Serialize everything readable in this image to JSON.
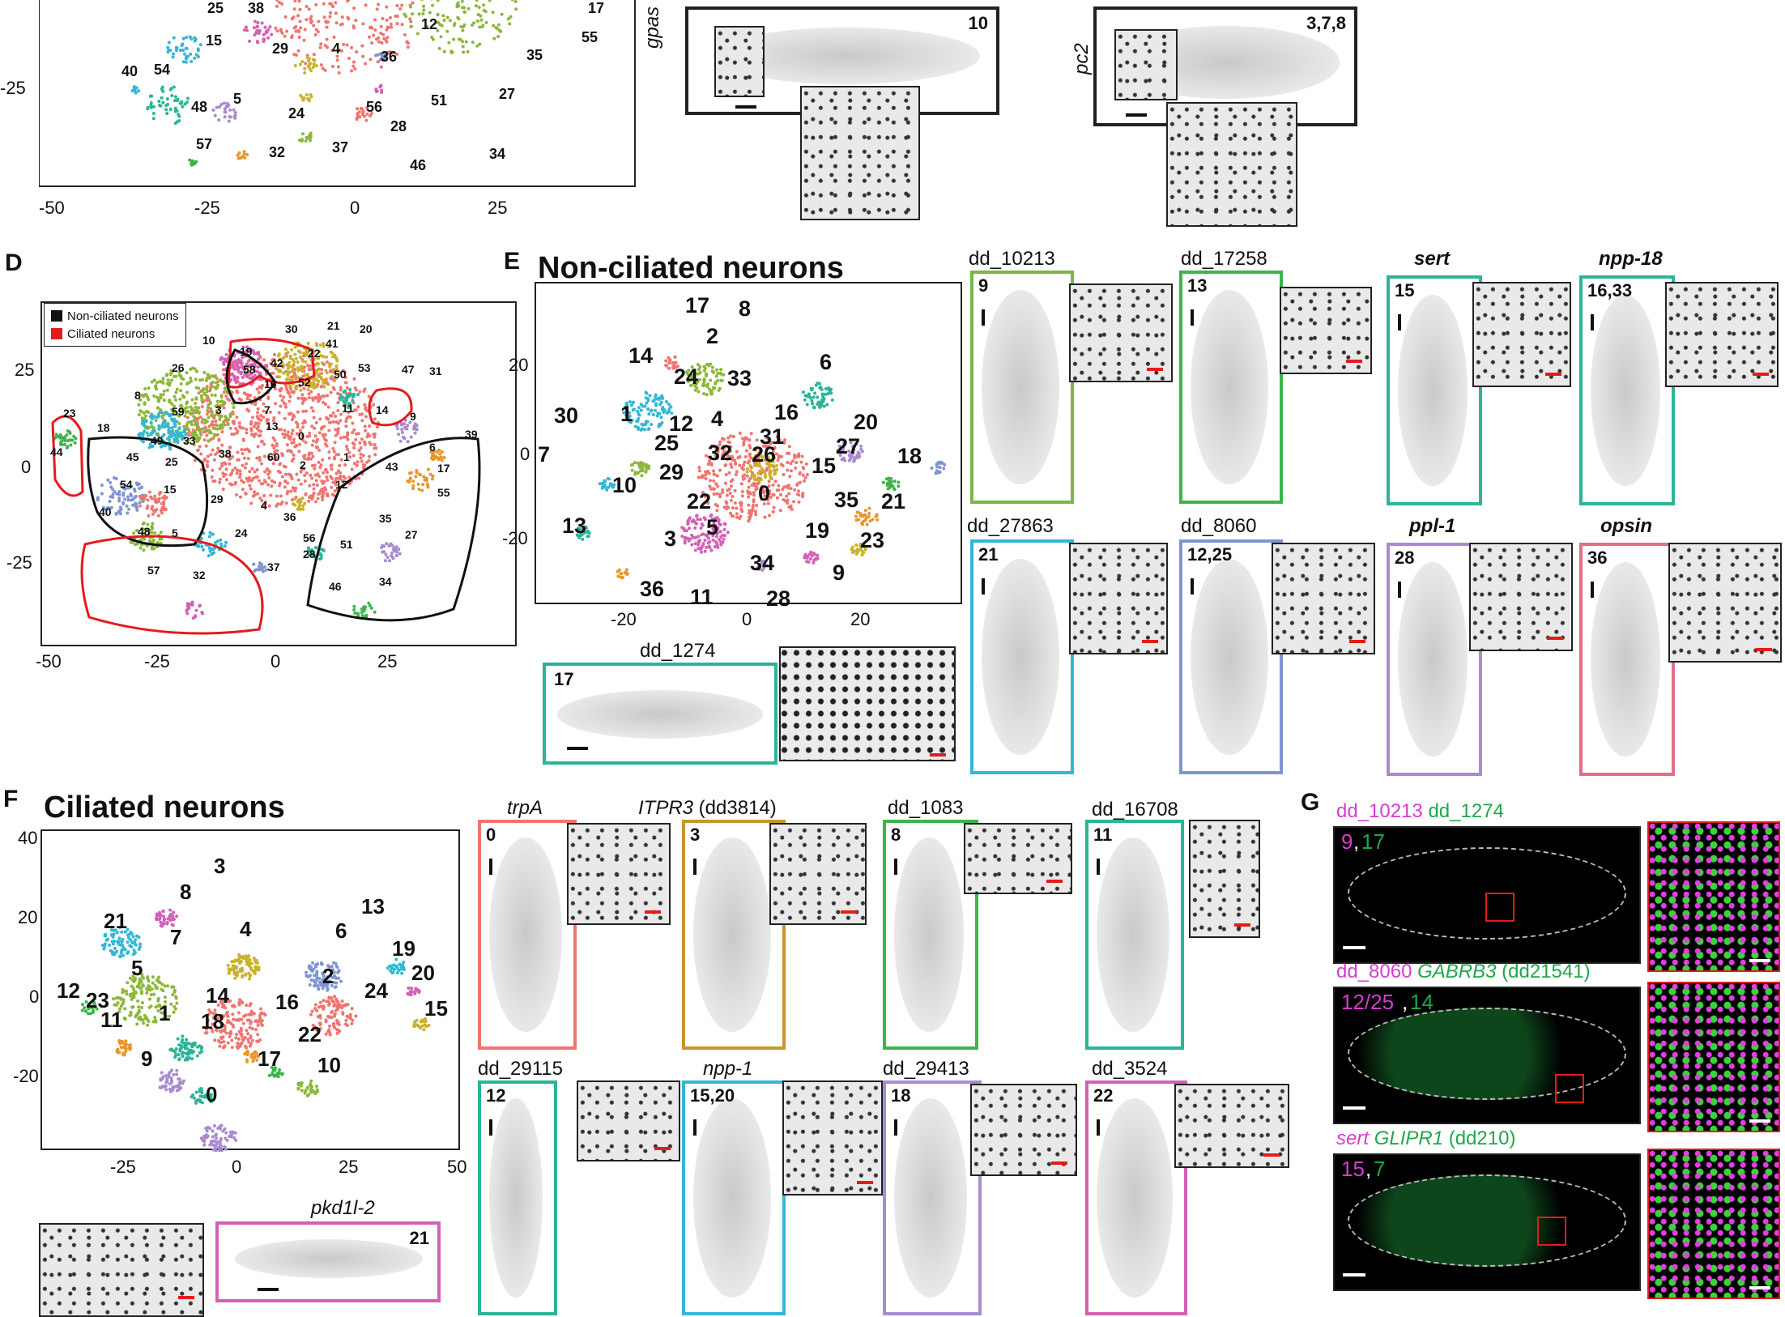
{
  "panels": {
    "D": {
      "letter": "D",
      "legend": [
        "Non-ciliated neurons",
        "Ciliated neurons"
      ],
      "legend_colors": [
        "#111111",
        "#e51b1b"
      ]
    },
    "E": {
      "letter": "E",
      "title": "Non-ciliated neurons"
    },
    "F": {
      "letter": "F",
      "title": "Ciliated neurons"
    },
    "G": {
      "letter": "G"
    }
  },
  "top_cropped": {
    "ticks_x": [
      "-50",
      "-25",
      "0",
      "25"
    ],
    "ticks_y": [
      "-25"
    ],
    "labels": [
      "25",
      "38",
      "15",
      "29",
      "4",
      "12",
      "36",
      "35",
      "17",
      "55",
      "54",
      "40",
      "48",
      "5",
      "24",
      "56",
      "51",
      "27",
      "28",
      "57",
      "32",
      "37",
      "34",
      "46"
    ],
    "images": [
      {
        "gene": "gpas",
        "cluster": "10"
      },
      {
        "gene": "pc2",
        "cluster": "3,7,8"
      }
    ]
  },
  "D_plot": {
    "ticks_x": [
      "-50",
      "-25",
      "0",
      "25"
    ],
    "ticks_y": [
      "25",
      "0",
      "-25"
    ],
    "labels": [
      "30",
      "21",
      "20",
      "10",
      "19",
      "42",
      "22",
      "41",
      "53",
      "58",
      "50",
      "16",
      "52",
      "47",
      "31",
      "26",
      "8",
      "59",
      "3",
      "7",
      "11",
      "14",
      "9",
      "23",
      "18",
      "49",
      "33",
      "13",
      "0",
      "1",
      "6",
      "43",
      "39",
      "45",
      "25",
      "38",
      "60",
      "2",
      "12",
      "17",
      "44",
      "54",
      "15",
      "29",
      "4",
      "36",
      "35",
      "55",
      "40",
      "48",
      "5",
      "24",
      "56",
      "51",
      "27",
      "28",
      "57",
      "32",
      "37",
      "46",
      "34"
    ]
  },
  "E_plot": {
    "ticks_x": [
      "-20",
      "0",
      "20"
    ],
    "ticks_y": [
      "20",
      "0",
      "-20"
    ],
    "labels": [
      "17",
      "8",
      "2",
      "14",
      "6",
      "24",
      "33",
      "30",
      "1",
      "16",
      "20",
      "12",
      "4",
      "31",
      "27",
      "7",
      "25",
      "32",
      "26",
      "18",
      "29",
      "15",
      "10",
      "0",
      "22",
      "35",
      "21",
      "5",
      "19",
      "23",
      "13",
      "3",
      "34",
      "9",
      "36",
      "11",
      "28"
    ]
  },
  "E_images": [
    {
      "gene": "dd_10213",
      "cluster": "9",
      "color": "#7ab648"
    },
    {
      "gene": "dd_17258",
      "cluster": "13",
      "color": "#3cb54a"
    },
    {
      "gene": "sert",
      "cluster": "15",
      "color": "#2bb598",
      "italic": true
    },
    {
      "gene": "npp-18",
      "cluster": "16,33",
      "color": "#2bb598",
      "italic": true
    },
    {
      "gene": "dd_27863",
      "cluster": "21",
      "color": "#33b7d6"
    },
    {
      "gene": "dd_8060",
      "cluster": "12,25",
      "color": "#7f95d1"
    },
    {
      "gene": "ppl-1",
      "cluster": "28",
      "color": "#a98bd0",
      "italic": true
    },
    {
      "gene": "opsin",
      "cluster": "36",
      "color": "#e36e86",
      "italic": true
    },
    {
      "gene": "dd_1274",
      "cluster": "17",
      "color": "#2bb598"
    }
  ],
  "F_plot": {
    "ticks_x": [
      "-25",
      "0",
      "25",
      "50"
    ],
    "ticks_y": [
      "40",
      "20",
      "0",
      "-20"
    ],
    "labels": [
      "3",
      "8",
      "21",
      "13",
      "7",
      "4",
      "6",
      "19",
      "5",
      "20",
      "2",
      "24",
      "12",
      "14",
      "23",
      "1",
      "16",
      "11",
      "15",
      "18",
      "22",
      "9",
      "17",
      "10",
      "0"
    ]
  },
  "F_images": [
    {
      "gene": "trpA",
      "cluster": "0",
      "color": "#f07470",
      "italic": true
    },
    {
      "gene": "ITPR3",
      "gene_suffix": "(dd3814)",
      "cluster": "3",
      "color": "#c9962c",
      "italic": true
    },
    {
      "gene": "dd_1083",
      "cluster": "8",
      "color": "#3cb54a"
    },
    {
      "gene": "dd_16708",
      "cluster": "11",
      "color": "#2bb598"
    },
    {
      "gene": "dd_29115",
      "cluster": "12",
      "color": "#2bb598"
    },
    {
      "gene": "npp-1",
      "cluster": "15,20",
      "color": "#33b7d6",
      "italic": true
    },
    {
      "gene": "dd_29413",
      "cluster": "18",
      "color": "#a98bd0"
    },
    {
      "gene": "dd_3524",
      "cluster": "22",
      "color": "#d460b6"
    },
    {
      "gene": "pkd1l-2",
      "cluster": "21",
      "color": "#d460b6",
      "italic": true
    }
  ],
  "G_images": [
    {
      "magenta": "dd_10213",
      "green": "dd_1274",
      "green_suffix": "",
      "num_m": "9",
      "num_g": "17"
    },
    {
      "magenta": "dd_8060",
      "green": "GABRB3",
      "green_suffix": "(dd21541)",
      "num_m": "12/25",
      "num_g": "14"
    },
    {
      "magenta": "sert",
      "green": "GLIPR1",
      "green_suffix": "(dd210)",
      "num_m": "15",
      "num_g": "7"
    }
  ],
  "colors": {
    "magenta": "#d93bd0",
    "green": "#1ea84a",
    "red": "#e51b1b"
  }
}
